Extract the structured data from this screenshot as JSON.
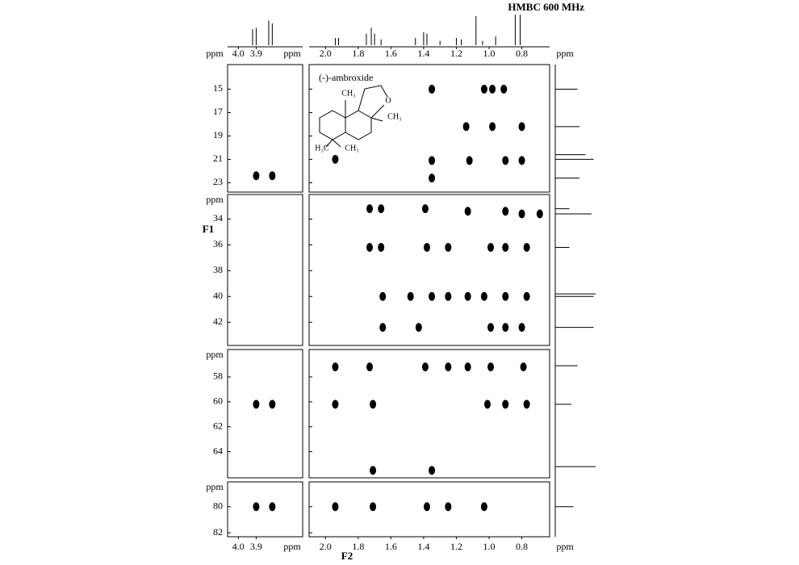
{
  "chart_data": {
    "type": "scatter",
    "title": "HMBC 600 MHz",
    "xlabel": "F2",
    "ylabel": "F1",
    "unit": "ppm",
    "annotation": "(-)-ambroxide",
    "structure_labels": [
      "CH₃",
      "O",
      "CH₃",
      "H₃C",
      "CH₃"
    ],
    "color": "#000000",
    "columns": [
      {
        "xlim": [
          4.06,
          3.64
        ],
        "xticks": [
          {
            "value": 4,
            "label": "4.0"
          },
          3.9
        ]
      },
      {
        "xlim": [
          2.1,
          0.63
        ],
        "xticks": [
          {
            "value": 2,
            "label": "2.0"
          },
          1.8,
          1.6,
          1.4,
          1.2,
          {
            "value": 1,
            "label": "1.0"
          },
          0.8
        ]
      }
    ],
    "rows": [
      {
        "ylim": [
          12.9,
          23.8
        ],
        "yticks": [
          15,
          17,
          19,
          21,
          23
        ],
        "series": [
          {
            "x": [
              3.9,
              3.81
            ],
            "values": [
              22.4,
              22.4
            ]
          },
          {
            "x": [
              1.35,
              1.03,
              0.98,
              0.91,
              1.14,
              0.98,
              0.8,
              1.94,
              1.35,
              1.12,
              0.9,
              0.8,
              1.35
            ],
            "values": [
              15.0,
              15.0,
              15.0,
              15.0,
              18.2,
              18.2,
              18.2,
              21.0,
              21.1,
              21.1,
              21.1,
              21.1,
              22.6
            ]
          }
        ]
      },
      {
        "ylim": [
          32.1,
          43.8
        ],
        "yticks": [
          34,
          36,
          38,
          40,
          42
        ],
        "series": [
          {
            "x": [],
            "values": []
          },
          {
            "x": [
              1.73,
              1.66,
              1.39,
              1.13,
              0.9,
              0.8,
              0.69,
              1.73,
              1.66,
              1.38,
              1.25,
              0.99,
              0.9,
              0.77,
              1.65,
              1.48,
              1.35,
              1.25,
              1.13,
              1.03,
              0.9,
              0.77,
              1.65,
              1.43,
              0.99,
              0.9,
              0.8
            ],
            "values": [
              33.2,
              33.2,
              33.2,
              33.4,
              33.4,
              33.6,
              33.6,
              36.2,
              36.2,
              36.2,
              36.2,
              36.2,
              36.2,
              36.2,
              40.0,
              40.0,
              40.0,
              40.0,
              40.0,
              40.0,
              40.0,
              40.0,
              42.4,
              42.4,
              42.4,
              42.4,
              42.4
            ]
          }
        ]
      },
      {
        "ylim": [
          55.8,
          66.1
        ],
        "yticks": [
          58,
          60,
          62,
          64
        ],
        "series": [
          {
            "x": [
              3.9,
              3.81
            ],
            "values": [
              60.2,
              60.2
            ]
          },
          {
            "x": [
              1.94,
              1.73,
              1.39,
              1.25,
              1.13,
              0.99,
              0.79,
              1.94,
              1.71,
              1.01,
              0.9,
              0.77,
              1.71,
              1.35
            ],
            "values": [
              57.2,
              57.2,
              57.2,
              57.2,
              57.2,
              57.2,
              57.2,
              60.2,
              60.2,
              60.2,
              60.2,
              60.2,
              65.5,
              65.5
            ]
          }
        ]
      },
      {
        "ylim": [
          78.1,
          82.3
        ],
        "yticks": [
          80,
          82
        ],
        "series": [
          {
            "x": [
              3.9,
              3.81
            ],
            "values": [
              80.0,
              80.0
            ]
          },
          {
            "x": [
              1.94,
              1.71,
              1.38,
              1.25,
              1.03
            ],
            "values": [
              80.0,
              80.0,
              80.0,
              80.0,
              80.0
            ]
          }
        ]
      }
    ],
    "spectrum_top": [
      {
        "x": [
          3.92,
          3.9,
          3.83,
          3.81
        ],
        "values": [
          55,
          60,
          85,
          75
        ]
      },
      {
        "x": [
          1.94,
          1.92,
          1.75,
          1.72,
          1.7,
          1.66,
          1.45,
          1.4,
          1.38,
          1.3,
          1.2,
          1.17,
          1.08,
          1.04,
          0.96,
          0.84,
          0.81
        ],
        "values": [
          25,
          25,
          40,
          60,
          40,
          20,
          25,
          45,
          40,
          15,
          25,
          20,
          100,
          15,
          30,
          105,
          105
        ]
      }
    ],
    "spectrum_right": [
      {
        "x": [
          15.0,
          18.2,
          20.6,
          21.0,
          22.6
        ],
        "values": [
          55,
          60,
          75,
          95,
          60
        ]
      },
      {
        "x": [
          33.2,
          33.6,
          36.2,
          39.8,
          40.0,
          42.4
        ],
        "values": [
          35,
          90,
          35,
          100,
          95,
          95
        ]
      },
      {
        "x": [
          57.1,
          60.2,
          65.2
        ],
        "values": [
          55,
          40,
          100
        ]
      },
      {
        "x": [
          80.0
        ],
        "values": [
          45
        ]
      }
    ]
  }
}
